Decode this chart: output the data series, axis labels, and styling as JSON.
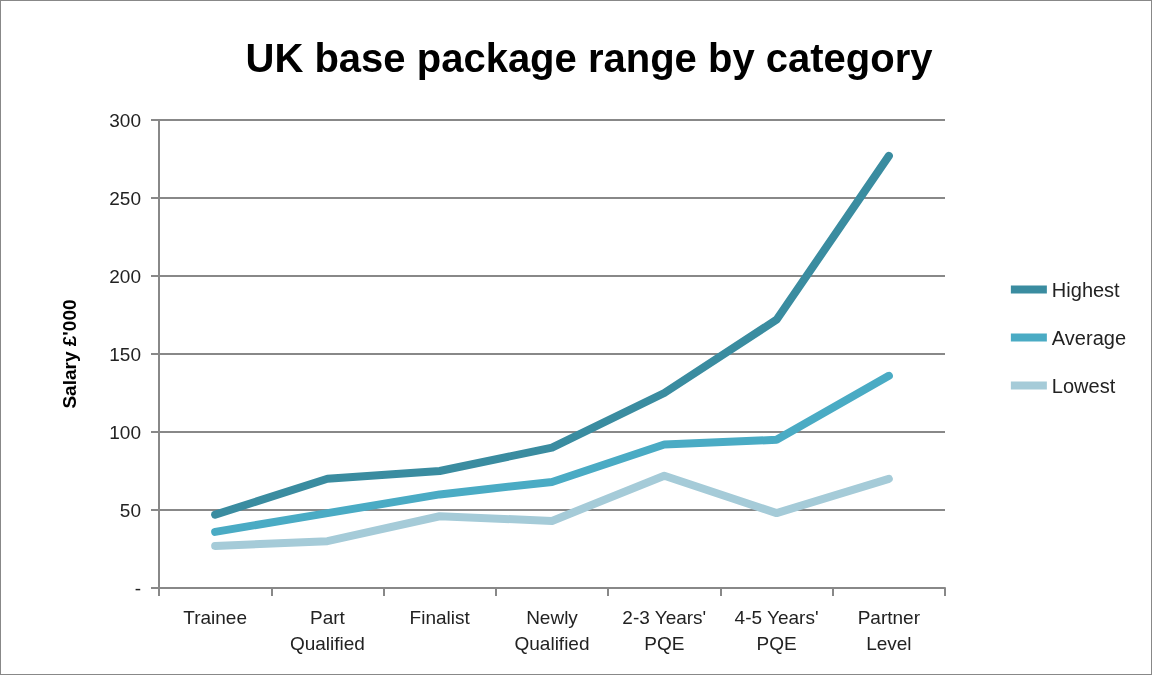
{
  "chart_data": {
    "type": "line",
    "title": "UK base package range by category",
    "ylabel": "Salary £'000",
    "categories": [
      "Trainee",
      "Part Qualified",
      "Finalist",
      "Newly Qualified",
      "2-3 Years' PQE",
      "4-5 Years' PQE",
      "Partner Level"
    ],
    "series": [
      {
        "name": "Highest",
        "color": "#3a8ca0",
        "values": [
          47,
          70,
          75,
          90,
          125,
          172,
          277
        ]
      },
      {
        "name": "Average",
        "color": "#4aabc4",
        "values": [
          36,
          48,
          60,
          68,
          92,
          95,
          136
        ]
      },
      {
        "name": "Lowest",
        "color": "#a5cbd8",
        "values": [
          27,
          30,
          46,
          43,
          72,
          48,
          70
        ]
      }
    ],
    "ylim": [
      0,
      300
    ],
    "yticks": [
      {
        "value": 0,
        "label": "-"
      },
      50,
      100,
      150,
      200,
      250,
      300
    ],
    "grid": "y",
    "legend": "right",
    "line_style": "solid"
  }
}
